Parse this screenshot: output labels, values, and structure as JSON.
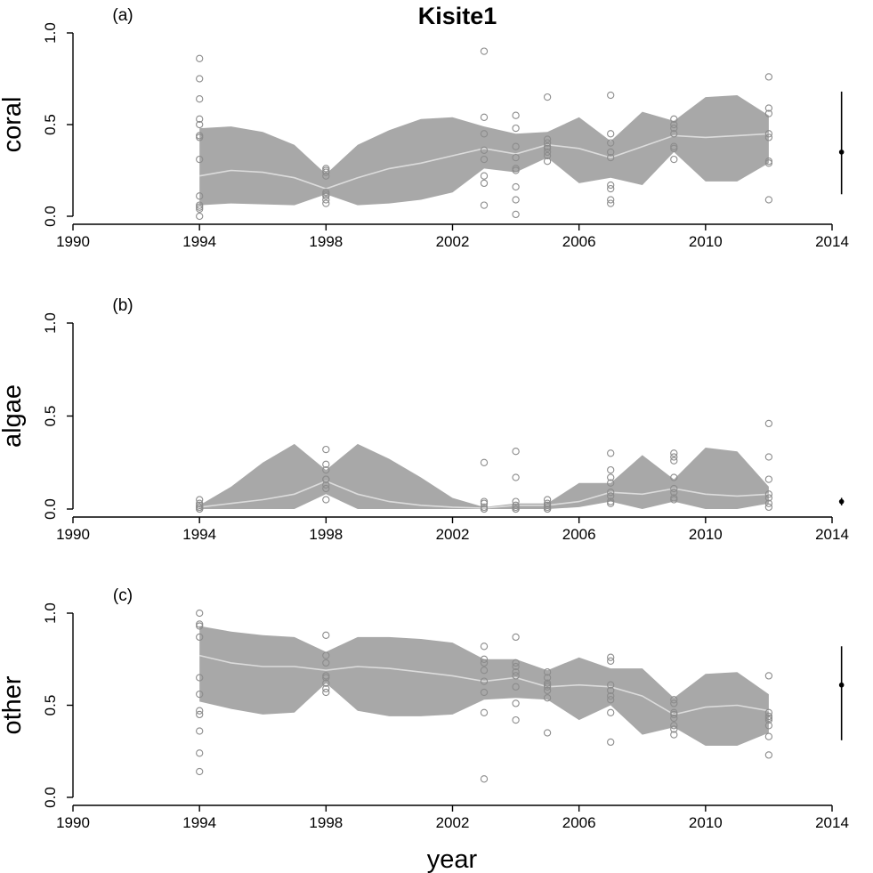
{
  "chart_data": {
    "type": "line",
    "title": "Kisite1",
    "xlabel": "year",
    "xlim": [
      1990,
      2014
    ],
    "xticks": [
      1990,
      1994,
      1998,
      2002,
      2006,
      2010,
      2014
    ],
    "ylim": [
      0,
      1
    ],
    "yticks": [
      0.0,
      0.5,
      1.0
    ],
    "colors": {
      "band": "#a8a8a8",
      "mean": "#dcdcdc",
      "points": "#8c8c8c",
      "estimate": "#000000"
    },
    "panels": [
      {
        "label": "(a)",
        "ylabel": "coral",
        "band_years": [
          1994,
          1995,
          1996,
          1997,
          1998,
          1999,
          2000,
          2001,
          2002,
          2003,
          2004,
          2005,
          2006,
          2007,
          2008,
          2009,
          2010,
          2011,
          2012
        ],
        "upper": [
          0.48,
          0.49,
          0.46,
          0.39,
          0.23,
          0.39,
          0.47,
          0.53,
          0.54,
          0.49,
          0.45,
          0.46,
          0.54,
          0.41,
          0.57,
          0.52,
          0.65,
          0.66,
          0.55
        ],
        "mean": [
          0.22,
          0.25,
          0.24,
          0.21,
          0.15,
          0.21,
          0.26,
          0.29,
          0.33,
          0.37,
          0.34,
          0.39,
          0.37,
          0.32,
          0.38,
          0.44,
          0.43,
          0.44,
          0.45
        ],
        "lower": [
          0.06,
          0.07,
          0.065,
          0.06,
          0.12,
          0.06,
          0.07,
          0.09,
          0.13,
          0.26,
          0.24,
          0.32,
          0.18,
          0.21,
          0.17,
          0.35,
          0.19,
          0.19,
          0.29
        ],
        "points": [
          [
            1994,
            [
              0.0,
              0.04,
              0.05,
              0.06,
              0.11,
              0.31,
              0.43,
              0.44,
              0.5,
              0.53,
              0.64,
              0.75,
              0.86
            ]
          ],
          [
            1998,
            [
              0.07,
              0.09,
              0.11,
              0.12,
              0.13,
              0.22,
              0.24,
              0.25,
              0.26
            ]
          ],
          [
            2003,
            [
              0.06,
              0.18,
              0.22,
              0.31,
              0.36,
              0.45,
              0.54,
              0.9
            ]
          ],
          [
            2004,
            [
              0.01,
              0.09,
              0.16,
              0.25,
              0.26,
              0.32,
              0.38,
              0.48,
              0.55
            ]
          ],
          [
            2005,
            [
              0.3,
              0.33,
              0.35,
              0.37,
              0.38,
              0.4,
              0.42,
              0.65
            ]
          ],
          [
            2007,
            [
              0.07,
              0.09,
              0.15,
              0.17,
              0.32,
              0.35,
              0.4,
              0.45,
              0.66
            ]
          ],
          [
            2009,
            [
              0.31,
              0.37,
              0.38,
              0.45,
              0.48,
              0.5,
              0.53
            ]
          ],
          [
            2012,
            [
              0.09,
              0.29,
              0.3,
              0.43,
              0.45,
              0.56,
              0.59,
              0.76
            ]
          ]
        ],
        "estimate": {
          "year": 2014.3,
          "value": 0.35,
          "low": 0.12,
          "high": 0.68
        }
      },
      {
        "label": "(b)",
        "ylabel": "algae",
        "band_years": [
          1994,
          1995,
          1996,
          1997,
          1998,
          1999,
          2000,
          2001,
          2002,
          2003,
          2004,
          2005,
          2006,
          2007,
          2008,
          2009,
          2010,
          2011,
          2012
        ],
        "upper": [
          0.02,
          0.12,
          0.25,
          0.35,
          0.21,
          0.35,
          0.27,
          0.17,
          0.06,
          0.01,
          0.03,
          0.03,
          0.14,
          0.14,
          0.29,
          0.16,
          0.33,
          0.31,
          0.12
        ],
        "mean": [
          0.01,
          0.03,
          0.05,
          0.08,
          0.15,
          0.08,
          0.04,
          0.02,
          0.01,
          0.005,
          0.02,
          0.02,
          0.04,
          0.09,
          0.08,
          0.11,
          0.08,
          0.07,
          0.08
        ],
        "lower": [
          0.0,
          0.0,
          0.0,
          0.0,
          0.08,
          0.0,
          0.0,
          0.0,
          0.0,
          0.0,
          0.0,
          0.0,
          0.01,
          0.04,
          0.0,
          0.04,
          0.0,
          0.0,
          0.03
        ],
        "points": [
          [
            1994,
            [
              0.0,
              0.0,
              0.01,
              0.01,
              0.02,
              0.03,
              0.05
            ]
          ],
          [
            1998,
            [
              0.05,
              0.11,
              0.13,
              0.16,
              0.16,
              0.21,
              0.24,
              0.32
            ]
          ],
          [
            2003,
            [
              0.0,
              0.0,
              0.01,
              0.03,
              0.04,
              0.25
            ]
          ],
          [
            2004,
            [
              0.0,
              0.0,
              0.01,
              0.02,
              0.04,
              0.17,
              0.31
            ]
          ],
          [
            2005,
            [
              0.0,
              0.0,
              0.01,
              0.02,
              0.03,
              0.05
            ]
          ],
          [
            2007,
            [
              0.03,
              0.04,
              0.07,
              0.09,
              0.14,
              0.17,
              0.21,
              0.3
            ]
          ],
          [
            2009,
            [
              0.05,
              0.06,
              0.09,
              0.11,
              0.17,
              0.26,
              0.28,
              0.3
            ]
          ],
          [
            2012,
            [
              0.01,
              0.03,
              0.06,
              0.08,
              0.16,
              0.28,
              0.46
            ]
          ]
        ],
        "estimate": {
          "year": 2014.3,
          "value": 0.04,
          "low": 0.02,
          "high": 0.06
        }
      },
      {
        "label": "(c)",
        "ylabel": "other",
        "band_years": [
          1994,
          1995,
          1996,
          1997,
          1998,
          1999,
          2000,
          2001,
          2002,
          2003,
          2004,
          2005,
          2006,
          2007,
          2008,
          2009,
          2010,
          2011,
          2012
        ],
        "upper": [
          0.93,
          0.9,
          0.88,
          0.87,
          0.79,
          0.87,
          0.87,
          0.86,
          0.84,
          0.75,
          0.75,
          0.69,
          0.76,
          0.7,
          0.7,
          0.54,
          0.67,
          0.68,
          0.56
        ],
        "mean": [
          0.77,
          0.73,
          0.71,
          0.71,
          0.69,
          0.71,
          0.7,
          0.68,
          0.66,
          0.63,
          0.65,
          0.6,
          0.61,
          0.6,
          0.55,
          0.45,
          0.49,
          0.5,
          0.47
        ],
        "lower": [
          0.52,
          0.48,
          0.45,
          0.46,
          0.62,
          0.47,
          0.44,
          0.44,
          0.45,
          0.53,
          0.54,
          0.53,
          0.42,
          0.5,
          0.34,
          0.38,
          0.28,
          0.28,
          0.35
        ],
        "points": [
          [
            1994,
            [
              0.14,
              0.24,
              0.36,
              0.45,
              0.47,
              0.56,
              0.65,
              0.87,
              0.93,
              0.94,
              1.0
            ]
          ],
          [
            1998,
            [
              0.57,
              0.59,
              0.62,
              0.65,
              0.66,
              0.73,
              0.77,
              0.88
            ]
          ],
          [
            2003,
            [
              0.1,
              0.46,
              0.57,
              0.63,
              0.69,
              0.73,
              0.75,
              0.82
            ]
          ],
          [
            2004,
            [
              0.42,
              0.51,
              0.6,
              0.66,
              0.68,
              0.71,
              0.73,
              0.87
            ]
          ],
          [
            2005,
            [
              0.35,
              0.54,
              0.58,
              0.6,
              0.61,
              0.62,
              0.65,
              0.68
            ]
          ],
          [
            2007,
            [
              0.3,
              0.46,
              0.53,
              0.55,
              0.58,
              0.61,
              0.74,
              0.76
            ]
          ],
          [
            2009,
            [
              0.34,
              0.37,
              0.39,
              0.43,
              0.45,
              0.46,
              0.51,
              0.53
            ]
          ],
          [
            2012,
            [
              0.23,
              0.33,
              0.39,
              0.42,
              0.43,
              0.44,
              0.46,
              0.66
            ]
          ]
        ],
        "estimate": {
          "year": 2014.3,
          "value": 0.61,
          "low": 0.31,
          "high": 0.82
        }
      }
    ]
  }
}
